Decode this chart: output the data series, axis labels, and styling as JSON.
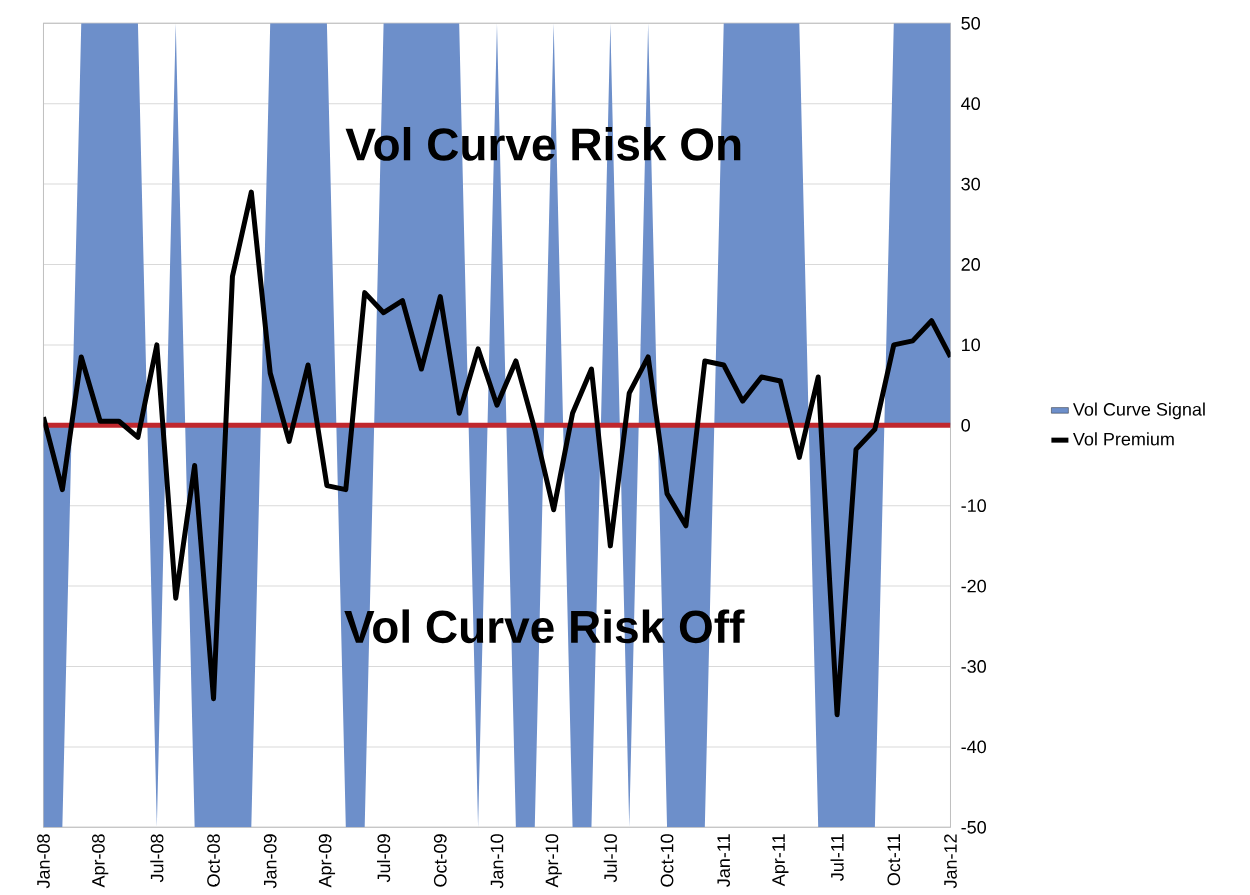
{
  "chart_data": {
    "type": "line",
    "categories": [
      "Jan-08",
      null,
      null,
      "Apr-08",
      null,
      null,
      "Jul-08",
      null,
      null,
      "Oct-08",
      null,
      null,
      "Jan-09",
      null,
      null,
      "Apr-09",
      null,
      null,
      "Jul-09",
      null,
      null,
      "Oct-09",
      null,
      null,
      "Jan-10",
      null,
      null,
      "Apr-10",
      null,
      null,
      "Jul-10",
      null,
      null,
      "Oct-10",
      null,
      null,
      "Jan-11",
      null,
      null,
      "Apr-11",
      null,
      null,
      "Jul-11",
      null,
      null,
      "Oct-11",
      null,
      null,
      "Jan-12"
    ],
    "series": [
      {
        "name": "Vol Curve Signal",
        "type": "area",
        "color": "#6d8fca",
        "values": [
          -50,
          -50,
          50,
          50,
          50,
          50,
          -50,
          50,
          -50,
          -50,
          -50,
          -50,
          50,
          50,
          50,
          50,
          -50,
          -50,
          50,
          50,
          50,
          50,
          50,
          -50,
          50,
          -50,
          -50,
          50,
          -50,
          -50,
          50,
          -50,
          50,
          -50,
          -50,
          -50,
          50,
          50,
          50,
          50,
          50,
          -50,
          -50,
          -50,
          -50,
          50,
          50,
          50,
          50
        ]
      },
      {
        "name": "Vol Premium",
        "color": "#000000",
        "values": [
          1,
          -8,
          8.5,
          0.5,
          0.5,
          -1.5,
          10,
          -21.5,
          -5,
          -34,
          18.5,
          29,
          6.5,
          -2,
          7.5,
          -7.5,
          -8,
          16.5,
          14,
          15.5,
          7,
          16,
          1.5,
          9.5,
          2.5,
          8,
          -0.5,
          -10.5,
          1.5,
          7,
          -15,
          4,
          8.5,
          -8.5,
          -12.5,
          8,
          7.5,
          3,
          6,
          5.5,
          -4,
          6,
          -36,
          -3,
          -0.5,
          10,
          10.5,
          13,
          8.5
        ]
      }
    ],
    "ylim": [
      -50,
      50
    ],
    "yticks": [
      -50,
      -40,
      -30,
      -20,
      -10,
      0,
      10,
      20,
      30,
      40,
      50
    ],
    "ref_lines": [
      {
        "axis": "y",
        "value": 0,
        "color": "#c0272d"
      }
    ],
    "annotations": [
      "Vol Curve Risk On",
      "Vol Curve Risk Off"
    ],
    "grid": "y",
    "legend": "right"
  }
}
